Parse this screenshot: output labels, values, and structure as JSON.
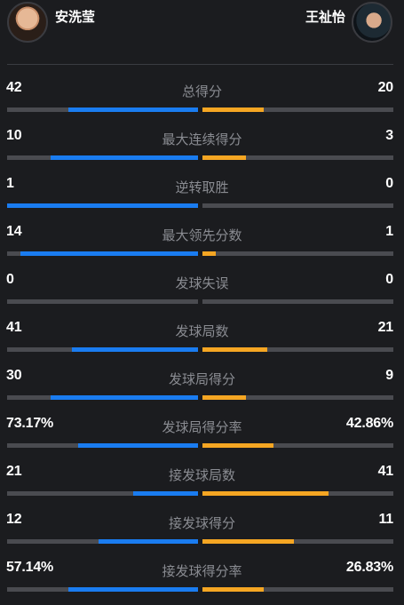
{
  "players": {
    "left": {
      "name": "安洗莹"
    },
    "right": {
      "name": "王祉怡"
    }
  },
  "colors": {
    "background": "#1b1c1f",
    "left_bar": "#1a7cf0",
    "right_bar": "#f5a623",
    "track": "#4a4b50",
    "label": "#8a8c92"
  },
  "stats": [
    {
      "label": "总得分",
      "left": "42",
      "right": "20",
      "left_fill": 0.68,
      "right_fill": 0.32
    },
    {
      "label": "最大连续得分",
      "left": "10",
      "right": "3",
      "left_fill": 0.77,
      "right_fill": 0.23
    },
    {
      "label": "逆转取胜",
      "left": "1",
      "right": "0",
      "left_fill": 1.0,
      "right_fill": 0.0
    },
    {
      "label": "最大领先分数",
      "left": "14",
      "right": "1",
      "left_fill": 0.93,
      "right_fill": 0.07
    },
    {
      "label": "发球失误",
      "left": "0",
      "right": "0",
      "left_fill": 0.0,
      "right_fill": 0.0
    },
    {
      "label": "发球局数",
      "left": "41",
      "right": "21",
      "left_fill": 0.66,
      "right_fill": 0.34
    },
    {
      "label": "发球局得分",
      "left": "30",
      "right": "9",
      "left_fill": 0.77,
      "right_fill": 0.23
    },
    {
      "label": "发球局得分率",
      "left": "73.17%",
      "right": "42.86%",
      "left_fill": 0.63,
      "right_fill": 0.37
    },
    {
      "label": "接发球局数",
      "left": "21",
      "right": "41",
      "left_fill": 0.34,
      "right_fill": 0.66
    },
    {
      "label": "接发球得分",
      "left": "12",
      "right": "11",
      "left_fill": 0.52,
      "right_fill": 0.48
    },
    {
      "label": "接发球得分率",
      "left": "57.14%",
      "right": "26.83%",
      "left_fill": 0.68,
      "right_fill": 0.32
    }
  ]
}
